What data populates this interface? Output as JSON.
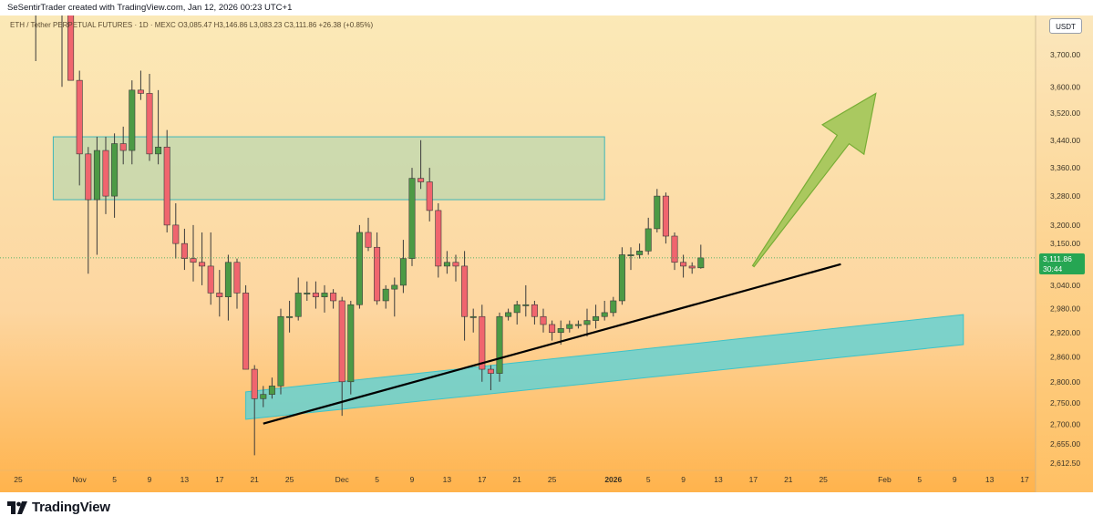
{
  "header": {
    "author_line": "SeSentirTrader created with TradingView.com, Jan 12, 2026 00:23 UTC+1"
  },
  "footer": {
    "logo_text": "TradingView"
  },
  "chart_data": {
    "type": "candlestick",
    "symbol_line": "ETH / Tether PERPETUAL FUTURES · 1D · MEXC  O3,085.47 H3,146.86 L3,083.23 C3,111.86 +26.38 (+0.85%)",
    "currency": "USDT",
    "last_price": "3,111.86",
    "countdown": "30:44",
    "y_scale": "log",
    "y_ticks": [
      "3,700.00",
      "3,600.00",
      "3,520.00",
      "3,440.00",
      "3,360.00",
      "3,280.00",
      "3,200.00",
      "3,150.00",
      "3,040.00",
      "2,980.00",
      "2,920.00",
      "2,860.00",
      "2,800.00",
      "2,750.00",
      "2,700.00",
      "2,655.00",
      "2,612.50"
    ],
    "x_ticks": [
      "25",
      "Nov",
      "5",
      "9",
      "13",
      "17",
      "21",
      "25",
      "Dec",
      "5",
      "9",
      "13",
      "17",
      "21",
      "25",
      "2026",
      "5",
      "9",
      "13",
      "17",
      "21",
      "25",
      "Feb",
      "5",
      "9",
      "13",
      "17"
    ],
    "x_start_date": "2025-10-25",
    "candles": [
      {
        "t": "2025-10-27",
        "o": 4020,
        "h": 4080,
        "l": 3680,
        "c": 3960
      },
      {
        "t": "2025-10-28",
        "o": 3960,
        "h": 4010,
        "l": 3900,
        "c": 3950
      },
      {
        "t": "2025-10-29",
        "o": 3940,
        "h": 4000,
        "l": 3850,
        "c": 3950
      },
      {
        "t": "2025-10-30",
        "o": 3940,
        "h": 3990,
        "l": 3600,
        "c": 3860
      },
      {
        "t": "2025-10-31",
        "o": 3860,
        "h": 3900,
        "l": 3620,
        "c": 3620
      },
      {
        "t": "2025-11-01",
        "o": 3620,
        "h": 3650,
        "l": 3310,
        "c": 3400
      },
      {
        "t": "2025-11-02",
        "o": 3400,
        "h": 3420,
        "l": 3070,
        "c": 3270
      },
      {
        "t": "2025-11-03",
        "o": 3270,
        "h": 3450,
        "l": 3120,
        "c": 3410
      },
      {
        "t": "2025-11-04",
        "o": 3410,
        "h": 3450,
        "l": 3230,
        "c": 3280
      },
      {
        "t": "2025-11-05",
        "o": 3280,
        "h": 3460,
        "l": 3220,
        "c": 3430
      },
      {
        "t": "2025-11-06",
        "o": 3430,
        "h": 3480,
        "l": 3370,
        "c": 3410
      },
      {
        "t": "2025-11-07",
        "o": 3410,
        "h": 3620,
        "l": 3370,
        "c": 3590
      },
      {
        "t": "2025-11-08",
        "o": 3590,
        "h": 3650,
        "l": 3560,
        "c": 3580
      },
      {
        "t": "2025-11-09",
        "o": 3580,
        "h": 3640,
        "l": 3380,
        "c": 3400
      },
      {
        "t": "2025-11-10",
        "o": 3400,
        "h": 3590,
        "l": 3370,
        "c": 3420
      },
      {
        "t": "2025-11-11",
        "o": 3420,
        "h": 3470,
        "l": 3180,
        "c": 3200
      },
      {
        "t": "2025-11-12",
        "o": 3200,
        "h": 3260,
        "l": 3110,
        "c": 3150
      },
      {
        "t": "2025-11-13",
        "o": 3150,
        "h": 3190,
        "l": 3080,
        "c": 3110
      },
      {
        "t": "2025-11-14",
        "o": 3110,
        "h": 3200,
        "l": 3050,
        "c": 3100
      },
      {
        "t": "2025-11-15",
        "o": 3100,
        "h": 3180,
        "l": 3040,
        "c": 3090
      },
      {
        "t": "2025-11-16",
        "o": 3090,
        "h": 3180,
        "l": 2990,
        "c": 3020
      },
      {
        "t": "2025-11-17",
        "o": 3020,
        "h": 3080,
        "l": 2960,
        "c": 3010
      },
      {
        "t": "2025-11-18",
        "o": 3010,
        "h": 3120,
        "l": 2950,
        "c": 3100
      },
      {
        "t": "2025-11-19",
        "o": 3100,
        "h": 3110,
        "l": 2980,
        "c": 3020
      },
      {
        "t": "2025-11-20",
        "o": 3020,
        "h": 3040,
        "l": 2830,
        "c": 2830
      },
      {
        "t": "2025-11-21",
        "o": 2830,
        "h": 2840,
        "l": 2630,
        "c": 2760
      },
      {
        "t": "2025-11-22",
        "o": 2760,
        "h": 2790,
        "l": 2740,
        "c": 2770
      },
      {
        "t": "2025-11-23",
        "o": 2770,
        "h": 2810,
        "l": 2760,
        "c": 2790
      },
      {
        "t": "2025-11-24",
        "o": 2790,
        "h": 2980,
        "l": 2770,
        "c": 2960
      },
      {
        "t": "2025-11-25",
        "o": 2960,
        "h": 3000,
        "l": 2920,
        "c": 2960
      },
      {
        "t": "2025-11-26",
        "o": 2960,
        "h": 3060,
        "l": 2950,
        "c": 3020
      },
      {
        "t": "2025-11-27",
        "o": 3020,
        "h": 3050,
        "l": 3000,
        "c": 3020
      },
      {
        "t": "2025-11-28",
        "o": 3020,
        "h": 3050,
        "l": 2980,
        "c": 3010
      },
      {
        "t": "2025-11-29",
        "o": 3010,
        "h": 3040,
        "l": 2970,
        "c": 3020
      },
      {
        "t": "2025-11-30",
        "o": 3020,
        "h": 3030,
        "l": 2980,
        "c": 3000
      },
      {
        "t": "2025-12-01",
        "o": 3000,
        "h": 3010,
        "l": 2720,
        "c": 2800
      },
      {
        "t": "2025-12-02",
        "o": 2800,
        "h": 3000,
        "l": 2770,
        "c": 2990
      },
      {
        "t": "2025-12-03",
        "o": 2990,
        "h": 3200,
        "l": 2980,
        "c": 3180
      },
      {
        "t": "2025-12-04",
        "o": 3180,
        "h": 3220,
        "l": 3130,
        "c": 3140
      },
      {
        "t": "2025-12-05",
        "o": 3140,
        "h": 3180,
        "l": 2990,
        "c": 3000
      },
      {
        "t": "2025-12-06",
        "o": 3000,
        "h": 3040,
        "l": 2980,
        "c": 3030
      },
      {
        "t": "2025-12-07",
        "o": 3030,
        "h": 3060,
        "l": 2960,
        "c": 3040
      },
      {
        "t": "2025-12-08",
        "o": 3040,
        "h": 3160,
        "l": 3020,
        "c": 3110
      },
      {
        "t": "2025-12-09",
        "o": 3110,
        "h": 3360,
        "l": 3090,
        "c": 3330
      },
      {
        "t": "2025-12-10",
        "o": 3330,
        "h": 3440,
        "l": 3300,
        "c": 3320
      },
      {
        "t": "2025-12-11",
        "o": 3320,
        "h": 3360,
        "l": 3210,
        "c": 3240
      },
      {
        "t": "2025-12-12",
        "o": 3240,
        "h": 3260,
        "l": 3060,
        "c": 3090
      },
      {
        "t": "2025-12-13",
        "o": 3090,
        "h": 3130,
        "l": 3070,
        "c": 3100
      },
      {
        "t": "2025-12-14",
        "o": 3100,
        "h": 3120,
        "l": 3050,
        "c": 3090
      },
      {
        "t": "2025-12-15",
        "o": 3090,
        "h": 3130,
        "l": 2900,
        "c": 2960
      },
      {
        "t": "2025-12-16",
        "o": 2960,
        "h": 2980,
        "l": 2920,
        "c": 2960
      },
      {
        "t": "2025-12-17",
        "o": 2960,
        "h": 2990,
        "l": 2800,
        "c": 2830
      },
      {
        "t": "2025-12-18",
        "o": 2830,
        "h": 2840,
        "l": 2780,
        "c": 2820
      },
      {
        "t": "2025-12-19",
        "o": 2820,
        "h": 2970,
        "l": 2800,
        "c": 2960
      },
      {
        "t": "2025-12-20",
        "o": 2960,
        "h": 2980,
        "l": 2950,
        "c": 2970
      },
      {
        "t": "2025-12-21",
        "o": 2970,
        "h": 3000,
        "l": 2940,
        "c": 2990
      },
      {
        "t": "2025-12-22",
        "o": 2990,
        "h": 3040,
        "l": 2960,
        "c": 2990
      },
      {
        "t": "2025-12-23",
        "o": 2990,
        "h": 3000,
        "l": 2940,
        "c": 2960
      },
      {
        "t": "2025-12-24",
        "o": 2960,
        "h": 2980,
        "l": 2920,
        "c": 2940
      },
      {
        "t": "2025-12-25",
        "o": 2940,
        "h": 2950,
        "l": 2900,
        "c": 2920
      },
      {
        "t": "2025-12-26",
        "o": 2920,
        "h": 2950,
        "l": 2890,
        "c": 2930
      },
      {
        "t": "2025-12-27",
        "o": 2930,
        "h": 2950,
        "l": 2920,
        "c": 2940
      },
      {
        "t": "2025-12-28",
        "o": 2940,
        "h": 2950,
        "l": 2930,
        "c": 2940
      },
      {
        "t": "2025-12-29",
        "o": 2940,
        "h": 2980,
        "l": 2910,
        "c": 2950
      },
      {
        "t": "2025-12-30",
        "o": 2950,
        "h": 2990,
        "l": 2930,
        "c": 2960
      },
      {
        "t": "2025-12-31",
        "o": 2960,
        "h": 3000,
        "l": 2950,
        "c": 2970
      },
      {
        "t": "2026-01-01",
        "o": 2970,
        "h": 3010,
        "l": 2960,
        "c": 3000
      },
      {
        "t": "2026-01-02",
        "o": 3000,
        "h": 3140,
        "l": 2990,
        "c": 3120
      },
      {
        "t": "2026-01-03",
        "o": 3120,
        "h": 3140,
        "l": 3080,
        "c": 3120
      },
      {
        "t": "2026-01-04",
        "o": 3120,
        "h": 3150,
        "l": 3110,
        "c": 3130
      },
      {
        "t": "2026-01-05",
        "o": 3130,
        "h": 3220,
        "l": 3120,
        "c": 3190
      },
      {
        "t": "2026-01-06",
        "o": 3190,
        "h": 3300,
        "l": 3180,
        "c": 3280
      },
      {
        "t": "2026-01-07",
        "o": 3280,
        "h": 3290,
        "l": 3150,
        "c": 3170
      },
      {
        "t": "2026-01-08",
        "o": 3170,
        "h": 3180,
        "l": 3080,
        "c": 3100
      },
      {
        "t": "2026-01-09",
        "o": 3100,
        "h": 3120,
        "l": 3060,
        "c": 3090
      },
      {
        "t": "2026-01-10",
        "o": 3090,
        "h": 3100,
        "l": 3070,
        "c": 3085
      },
      {
        "t": "2026-01-11",
        "o": 3085.47,
        "h": 3146.86,
        "l": 3083.23,
        "c": 3111.86
      }
    ],
    "colors": {
      "up": "#4c9a45",
      "down": "#f0656e",
      "resistance_zone": "#9ed3b0",
      "support_channel": "#5fd2d6",
      "trendline": "#000000",
      "arrow": "#8fc046",
      "price_tag": "#26a653",
      "background_top": "#fbe9b7",
      "background_bottom": "#ffb34c"
    },
    "drawings": {
      "resistance_zone": {
        "t1": "2025-10-29",
        "t2": "2025-12-31",
        "top": 3450,
        "bottom": 3270
      },
      "support_channel": {
        "t_left": "2025-11-20",
        "t_right": "2026-02-10",
        "left_upper": 2776,
        "left_lower": 2712,
        "right_upper": 2965,
        "right_lower": 2890
      },
      "trendline": {
        "t1": "2025-11-22",
        "p1": 2702,
        "t2": "2026-01-27",
        "p2": 3095
      },
      "arrow": {
        "t1": "2026-01-17",
        "p1": 3090,
        "t2": "2026-01-31",
        "p2": 3580
      }
    }
  }
}
